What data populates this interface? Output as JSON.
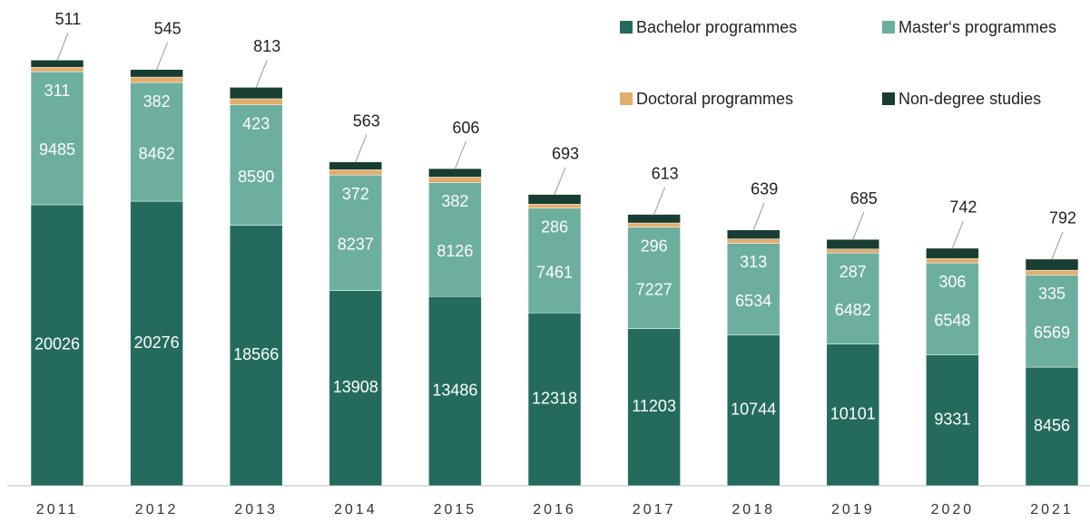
{
  "chart_data": {
    "type": "stacked_bar",
    "categories": [
      "2011",
      "2012",
      "2013",
      "2014",
      "2015",
      "2016",
      "2017",
      "2018",
      "2019",
      "2020",
      "2021"
    ],
    "series": [
      {
        "name": "Bachelor programmes",
        "color": "#246b5e",
        "values": [
          20026,
          20276,
          18566,
          13908,
          13486,
          12318,
          11203,
          10744,
          10101,
          9331,
          8456
        ]
      },
      {
        "name": "Master‘s programmes",
        "color": "#6daf9e",
        "values": [
          9485,
          8462,
          8590,
          8237,
          8126,
          7461,
          7227,
          6534,
          6482,
          6548,
          6569
        ]
      },
      {
        "name": "Doctoral programmes",
        "color": "#e3ad6b",
        "values": [
          311,
          382,
          423,
          372,
          382,
          286,
          296,
          313,
          287,
          306,
          335
        ]
      },
      {
        "name": "Non-degree studies",
        "color": "#183d33",
        "values": [
          511,
          545,
          813,
          563,
          606,
          693,
          613,
          639,
          685,
          742,
          792
        ]
      }
    ],
    "ylim": [
      0,
      31000
    ]
  }
}
